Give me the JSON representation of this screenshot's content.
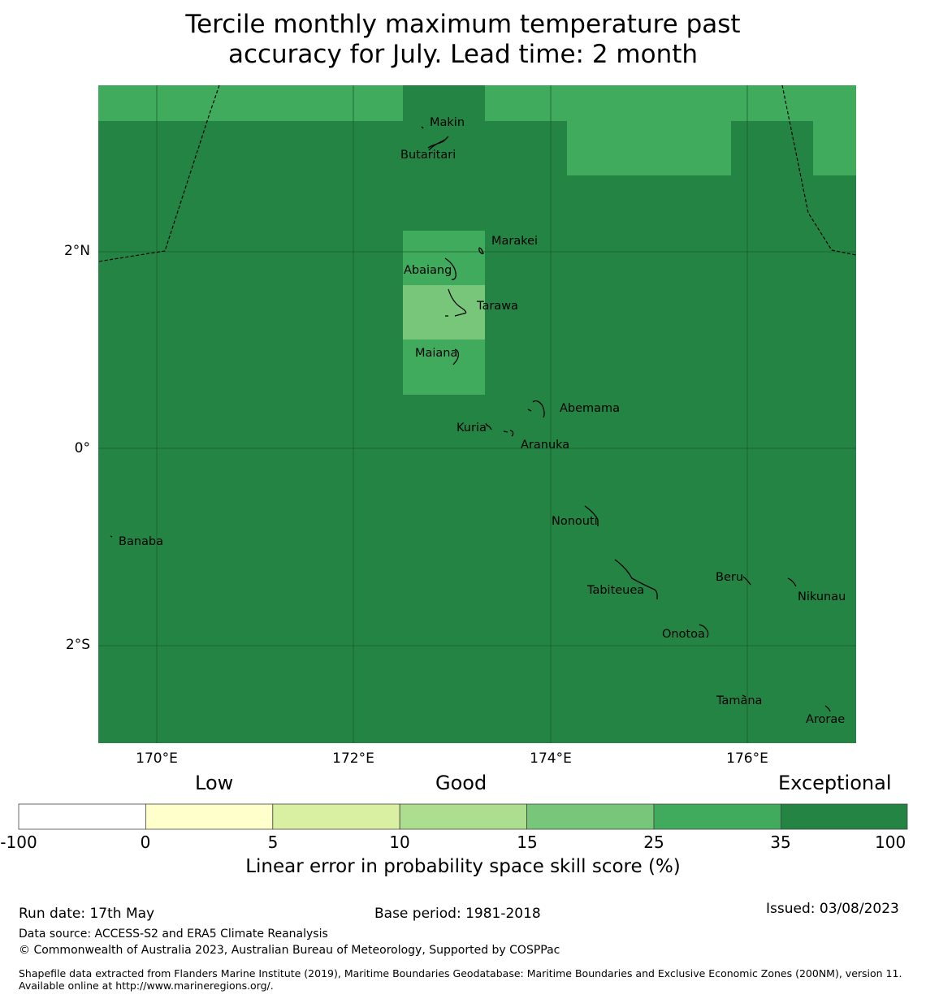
{
  "title": {
    "line1": "Tercile monthly maximum temperature past",
    "line2": "accuracy for July. Lead time: 2 month"
  },
  "map": {
    "lat_ticks": [
      "2°N",
      "0°",
      "2°S"
    ],
    "lon_ticks": [
      "170°E",
      "172°E",
      "174°E",
      "176°E"
    ],
    "places": [
      "Makin",
      "Butaritari",
      "Marakei",
      "Abaiang",
      "Tarawa",
      "Maiana",
      "Abemama",
      "Kuria",
      "Aranuka",
      "Nonouti",
      "Banaba",
      "Beru",
      "Tabiteuea",
      "Nikunau",
      "Onotoa",
      "Tamana",
      "Arorae"
    ],
    "colors": {
      "exceptional": "#238443",
      "band_25_35": "#41ab5d",
      "band_15_25": "#78c679",
      "grid": "#1a5c2e",
      "eez_boundary": "#000000"
    }
  },
  "colorbar": {
    "categories": {
      "low": "Low",
      "good": "Good",
      "exceptional": "Exceptional"
    },
    "ticks": [
      "-100",
      "0",
      "5",
      "10",
      "15",
      "25",
      "35",
      "100"
    ],
    "colors": [
      "#ffffff",
      "#ffffcc",
      "#d9f0a3",
      "#addd8e",
      "#78c679",
      "#41ab5d",
      "#238443"
    ],
    "title": "Linear error in probability space skill score (%)"
  },
  "footer": {
    "run_date": "Run date: 17th May",
    "base_period": "Base period: 1981-2018",
    "issued": "Issued: 03/08/2023",
    "data_source": "Data source: ACCESS-S2 and ERA5 Climate Reanalysis",
    "copyright": "© Commonwealth of Australia 2023, Australian Bureau of Meteorology, Supported by COSPPac",
    "shapefile": "Shapefile data extracted from Flanders Marine Institute (2019), Maritime Boundaries Geodatabase: Maritime Boundaries and Exclusive Economic Zones (200NM), version 11. Available online at http://www.marineregions.org/."
  }
}
